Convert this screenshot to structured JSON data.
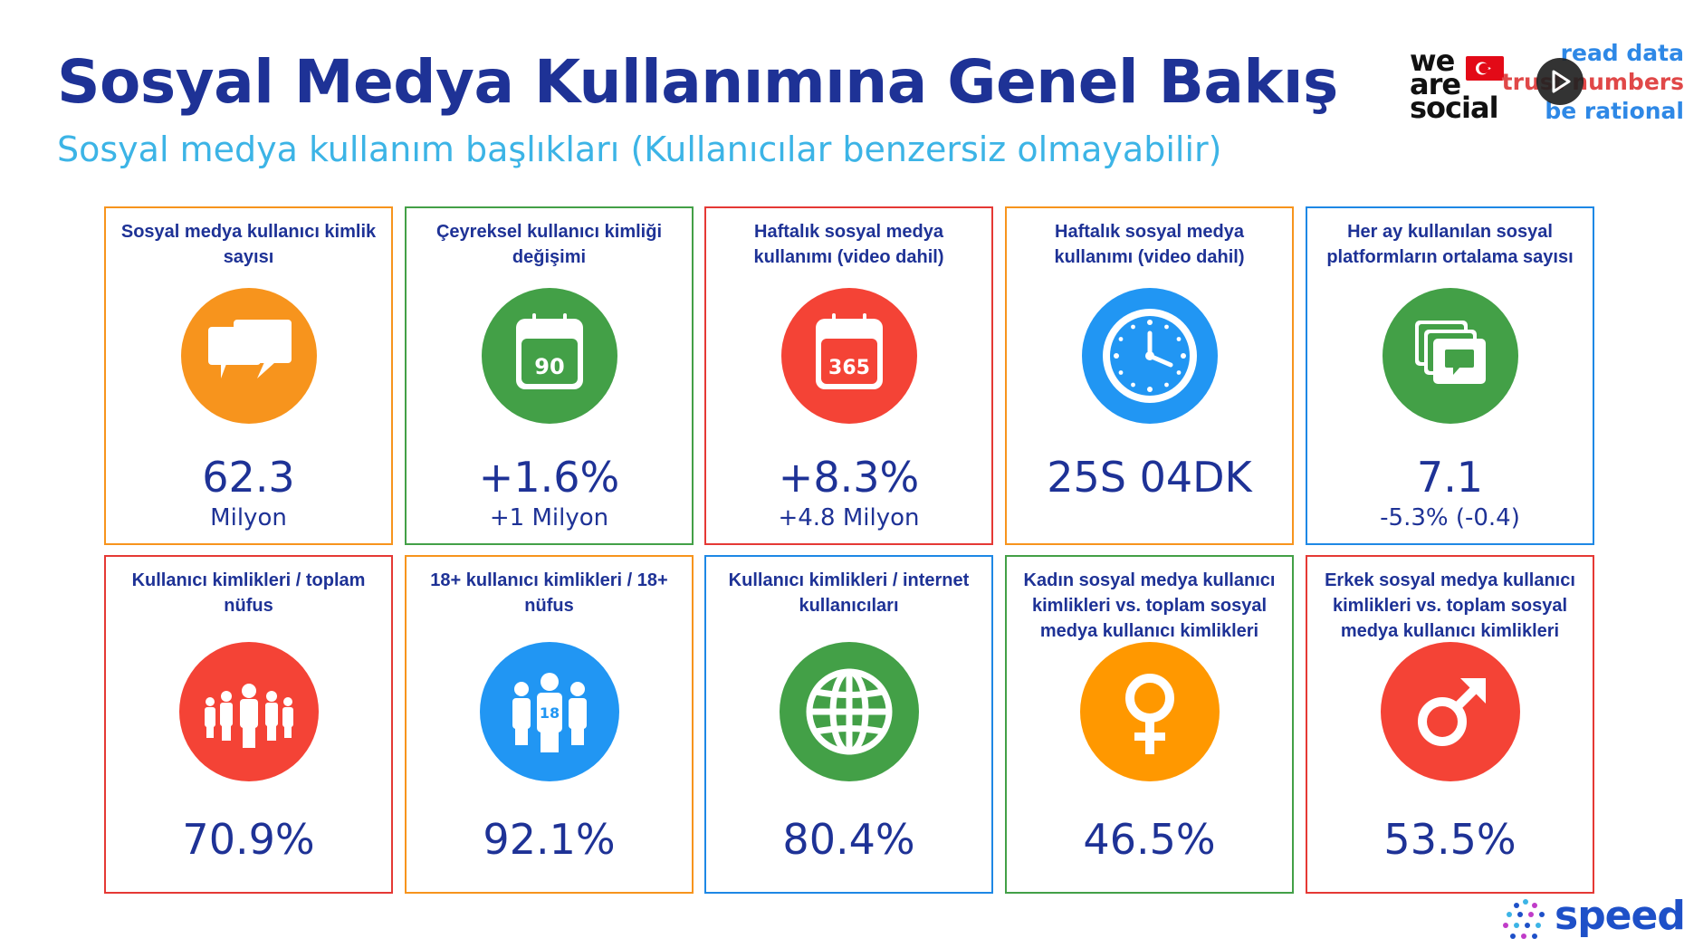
{
  "header": {
    "title": "Sosyal Medya Kullanımına Genel Bakış",
    "subtitle": "Sosyal medya kullanım başlıkları (Kullanıcılar benzersiz olmayabilir)"
  },
  "logos": {
    "we_are_social": [
      "we",
      "are",
      "social"
    ],
    "read_data": [
      "read data",
      "trust numbers",
      "be rational"
    ],
    "speed": "speed"
  },
  "cards": [
    {
      "label": "Sosyal medya kullanıcı kimlik sayısı",
      "value": "62.3",
      "sub": "Milyon",
      "color": "#f7941d",
      "icon": "chat-bubbles-icon"
    },
    {
      "label": "Çeyreksel kullanıcı kimliği değişimi",
      "value": "+1.6%",
      "sub": "+1 Milyon",
      "color": "#43a047",
      "icon": "calendar-90-icon",
      "icon_text": "90"
    },
    {
      "label": "Haftalık sosyal medya kullanımı (video dahil)",
      "value": "+8.3%",
      "sub": "+4.8 Milyon",
      "color": "#e53935",
      "icon": "calendar-365-icon",
      "icon_text": "365"
    },
    {
      "label": "Haftalık sosyal medya kullanımı (video dahil)",
      "value": "25S 04DK",
      "sub": "",
      "color": "#f7941d",
      "icon": "clock-icon"
    },
    {
      "label": "Her ay kullanılan sosyal platformların ortalama sayısı",
      "value": "7.1",
      "sub": "-5.3% (-0.4)",
      "color": "#1e88e5",
      "icon": "stacked-windows-icon"
    },
    {
      "label": "Kullanıcı kimlikleri / toplam nüfus",
      "value": "70.9%",
      "color": "#e53935",
      "icon": "crowd-icon"
    },
    {
      "label": "18+ kullanıcı kimlikleri / 18+ nüfus",
      "value": "92.1%",
      "color": "#f7941d",
      "icon": "adults-18-icon",
      "icon_text": "18"
    },
    {
      "label": "Kullanıcı kimlikleri / internet kullanıcıları",
      "value": "80.4%",
      "color": "#1e88e5",
      "icon": "globe-icon"
    },
    {
      "label": "Kadın sosyal medya kullanıcı kimlikleri vs. toplam sosyal medya kullanıcı kimlikleri",
      "value": "46.5%",
      "color": "#43a047",
      "icon": "female-symbol-icon"
    },
    {
      "label": "Erkek sosyal medya kullanıcı kimlikleri vs. toplam sosyal medya kullanıcı kimlikleri",
      "value": "53.5%",
      "color": "#e53935",
      "icon": "male-symbol-icon"
    }
  ],
  "icon_colors": {
    "chat": "#f7941d",
    "cal90": "#43a047",
    "cal365": "#f44336",
    "clock": "#2196f3",
    "windows": "#43a047",
    "crowd": "#f44336",
    "adults": "#2196f3",
    "globe": "#43a047",
    "female": "#ff9800",
    "male": "#f44336"
  }
}
